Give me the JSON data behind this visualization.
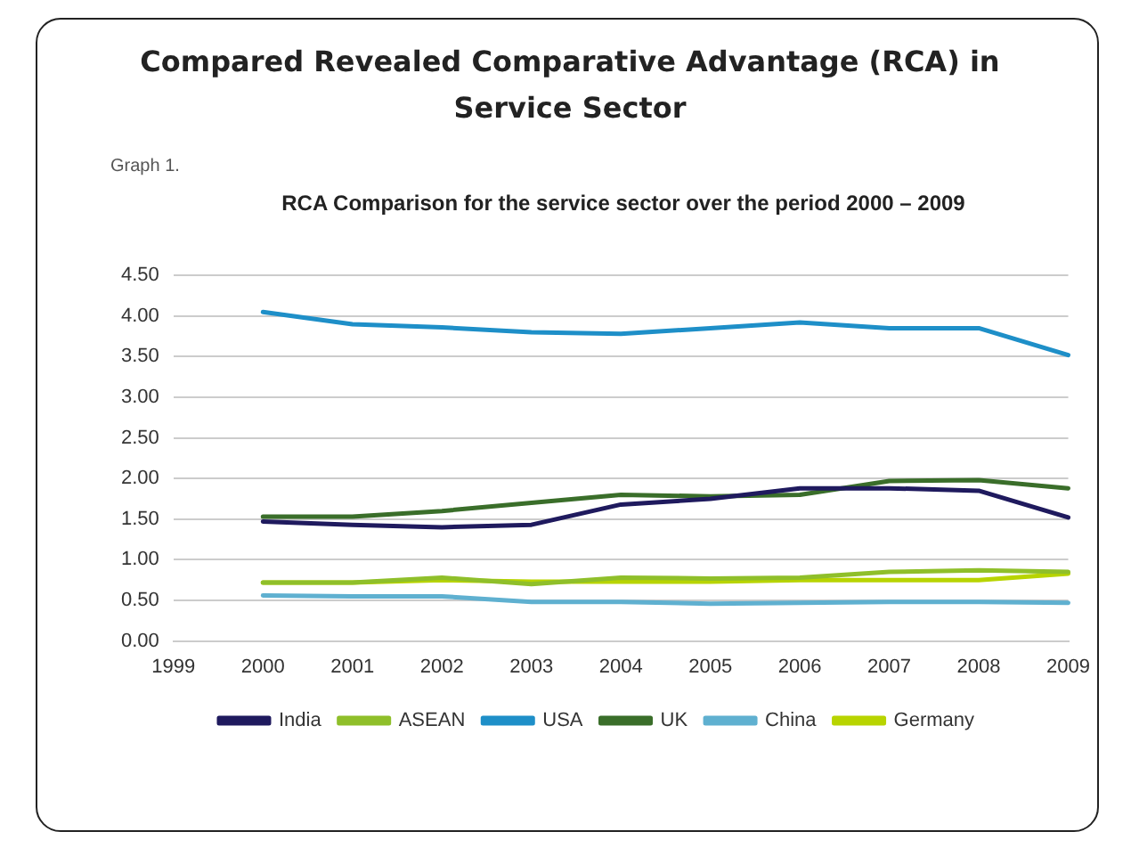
{
  "chart_data": {
    "type": "line",
    "title": "Compared Revealed Comparative Advantage (RCA) in Service Sector",
    "subtitle": "RCA Comparison for the service sector over the period 2000 – 2009",
    "annotations": [
      "Graph 1."
    ],
    "categories": [
      "1999",
      "2000",
      "2001",
      "2002",
      "2003",
      "2004",
      "2005",
      "2006",
      "2007",
      "2008",
      "2009"
    ],
    "series": [
      {
        "name": "India",
        "color": "#1f1a5e",
        "values": [
          null,
          1.47,
          1.43,
          1.4,
          1.43,
          1.68,
          1.75,
          1.88,
          1.88,
          1.85,
          1.52
        ]
      },
      {
        "name": "ASEAN",
        "color": "#8fbf2a",
        "values": [
          null,
          0.72,
          0.72,
          0.78,
          0.7,
          0.78,
          0.77,
          0.78,
          0.85,
          0.87,
          0.85
        ]
      },
      {
        "name": "USA",
        "color": "#1e8fc8",
        "values": [
          null,
          4.05,
          3.9,
          3.86,
          3.8,
          3.78,
          3.85,
          3.92,
          3.85,
          3.85,
          3.52
        ]
      },
      {
        "name": "UK",
        "color": "#3a6e2a",
        "values": [
          null,
          1.53,
          1.53,
          1.6,
          1.7,
          1.8,
          1.78,
          1.8,
          1.97,
          1.98,
          1.88
        ]
      },
      {
        "name": "China",
        "color": "#5fb0d0",
        "values": [
          null,
          0.56,
          0.55,
          0.55,
          0.48,
          0.48,
          0.46,
          0.47,
          0.48,
          0.48,
          0.47
        ]
      },
      {
        "name": "Germany",
        "color": "#b8d400",
        "values": [
          null,
          0.72,
          0.72,
          0.75,
          0.73,
          0.73,
          0.73,
          0.75,
          0.75,
          0.75,
          0.83
        ]
      }
    ],
    "ylim": [
      0,
      4.5
    ],
    "yticks": [
      {
        "value": 0,
        "label": "0.00"
      },
      {
        "value": 0.5,
        "label": "0.50"
      },
      {
        "value": 1,
        "label": "1.00"
      },
      {
        "value": 1.5,
        "label": "1.50"
      },
      {
        "value": 2,
        "label": "2.00"
      },
      {
        "value": 2.5,
        "label": "2.50"
      },
      {
        "value": 3,
        "label": "3.00"
      },
      {
        "value": 3.5,
        "label": "3.50"
      },
      {
        "value": 4,
        "label": "4.00"
      },
      {
        "value": 4.5,
        "label": "4.50"
      }
    ],
    "grid": "y",
    "legend": "bottom",
    "marker": "none",
    "line_style": "solid"
  }
}
